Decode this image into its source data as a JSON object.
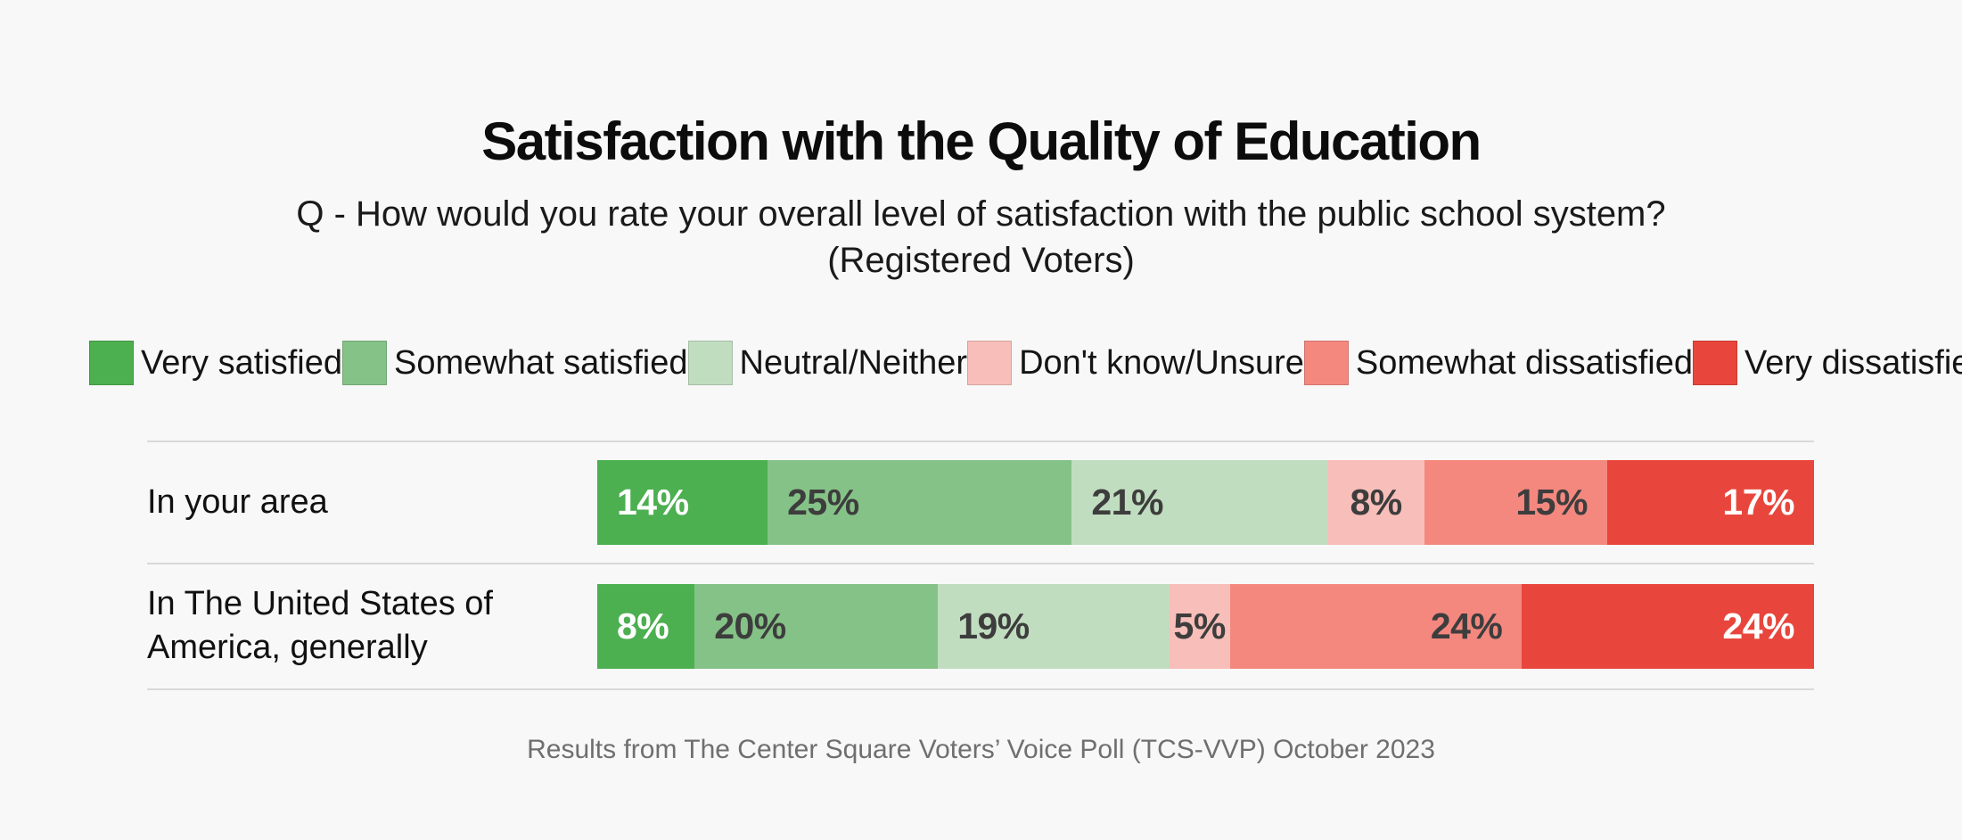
{
  "header": {
    "title": "Satisfaction with the Quality of Education",
    "subtitle_question": "Q - How would you rate your overall level of satisfaction with the public school system?",
    "subtitle_population": "(Registered Voters)"
  },
  "footer": {
    "source": "Results from The Center Square Voters’ Voice Poll (TCS-VVP) October 2023"
  },
  "colors": {
    "background": "#f8f8f8",
    "divider": "#d9d9d9",
    "value_label_dark": "#3d3d3d",
    "value_label_light": "#ffffff",
    "footer_text": "#6f6f6f"
  },
  "chart_data": {
    "type": "bar",
    "subtype": "horizontal-stacked-100",
    "title": "Satisfaction with the Quality of Education",
    "xlabel": "",
    "ylabel": "",
    "xlim": [
      0,
      100
    ],
    "grid": false,
    "legend_position": "top",
    "value_format": "percent",
    "categories": [
      "In your area",
      "In The United States of America, generally"
    ],
    "series": [
      {
        "name": "Very satisfied",
        "color": "#4caf50",
        "values": [
          14,
          8
        ],
        "label_color": "#ffffff",
        "label_align": "left"
      },
      {
        "name": "Somewhat satisfied",
        "color": "#85c287",
        "values": [
          25,
          20
        ],
        "label_color": "#3d3d3d",
        "label_align": "left"
      },
      {
        "name": "Neutral/Neither",
        "color": "#c1ddc0",
        "values": [
          21,
          19
        ],
        "label_color": "#3d3d3d",
        "label_align": "left"
      },
      {
        "name": "Don't know/Unsure",
        "color": "#f8beb9",
        "values": [
          8,
          5
        ],
        "label_color": "#3d3d3d",
        "label_align": "center"
      },
      {
        "name": "Somewhat dissatisfied",
        "color": "#f4887f",
        "values": [
          15,
          24
        ],
        "label_color": "#3d3d3d",
        "label_align": "right"
      },
      {
        "name": "Very dissatisfied",
        "color": "#e8463c",
        "values": [
          17,
          24
        ],
        "label_color": "#ffffff",
        "label_align": "right"
      }
    ]
  }
}
